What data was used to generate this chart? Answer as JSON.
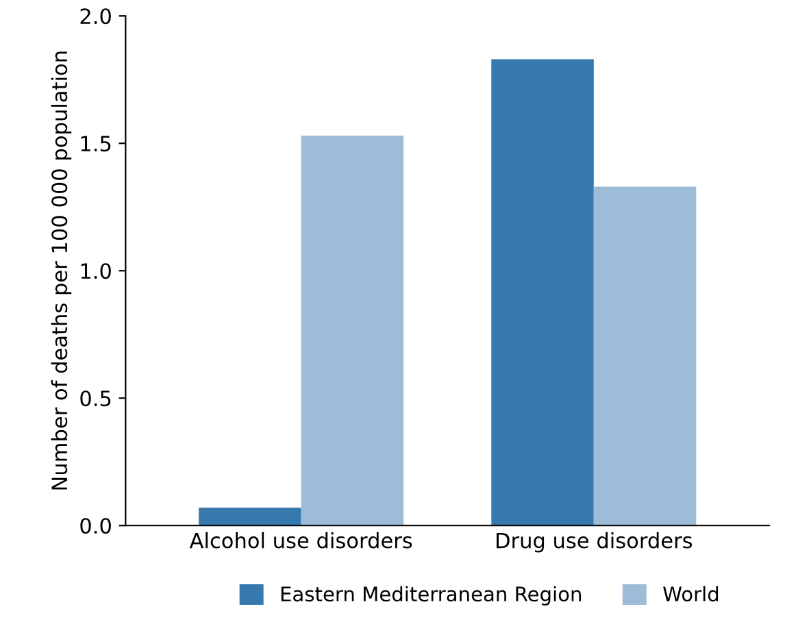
{
  "chart_data": {
    "type": "bar",
    "ylabel": "Number of deaths per 100 000 population",
    "categories": [
      "Alcohol use disorders",
      "Drug use disorders"
    ],
    "series": [
      {
        "name": "Eastern Mediterranean Region",
        "color": "#3579ae",
        "values": [
          0.07,
          1.83
        ]
      },
      {
        "name": "World",
        "color": "#9dbcd8",
        "values": [
          1.53,
          1.33
        ]
      }
    ],
    "ylim": [
      0,
      2.0
    ],
    "yticks": [
      {
        "value": 0,
        "label": "0.0"
      },
      {
        "value": 0.5,
        "label": "0.5"
      },
      {
        "value": 1,
        "label": "1.0"
      },
      {
        "value": 1.5,
        "label": "1.5"
      },
      {
        "value": 2,
        "label": "2.0"
      }
    ],
    "grid": false,
    "legend": "bottom"
  }
}
